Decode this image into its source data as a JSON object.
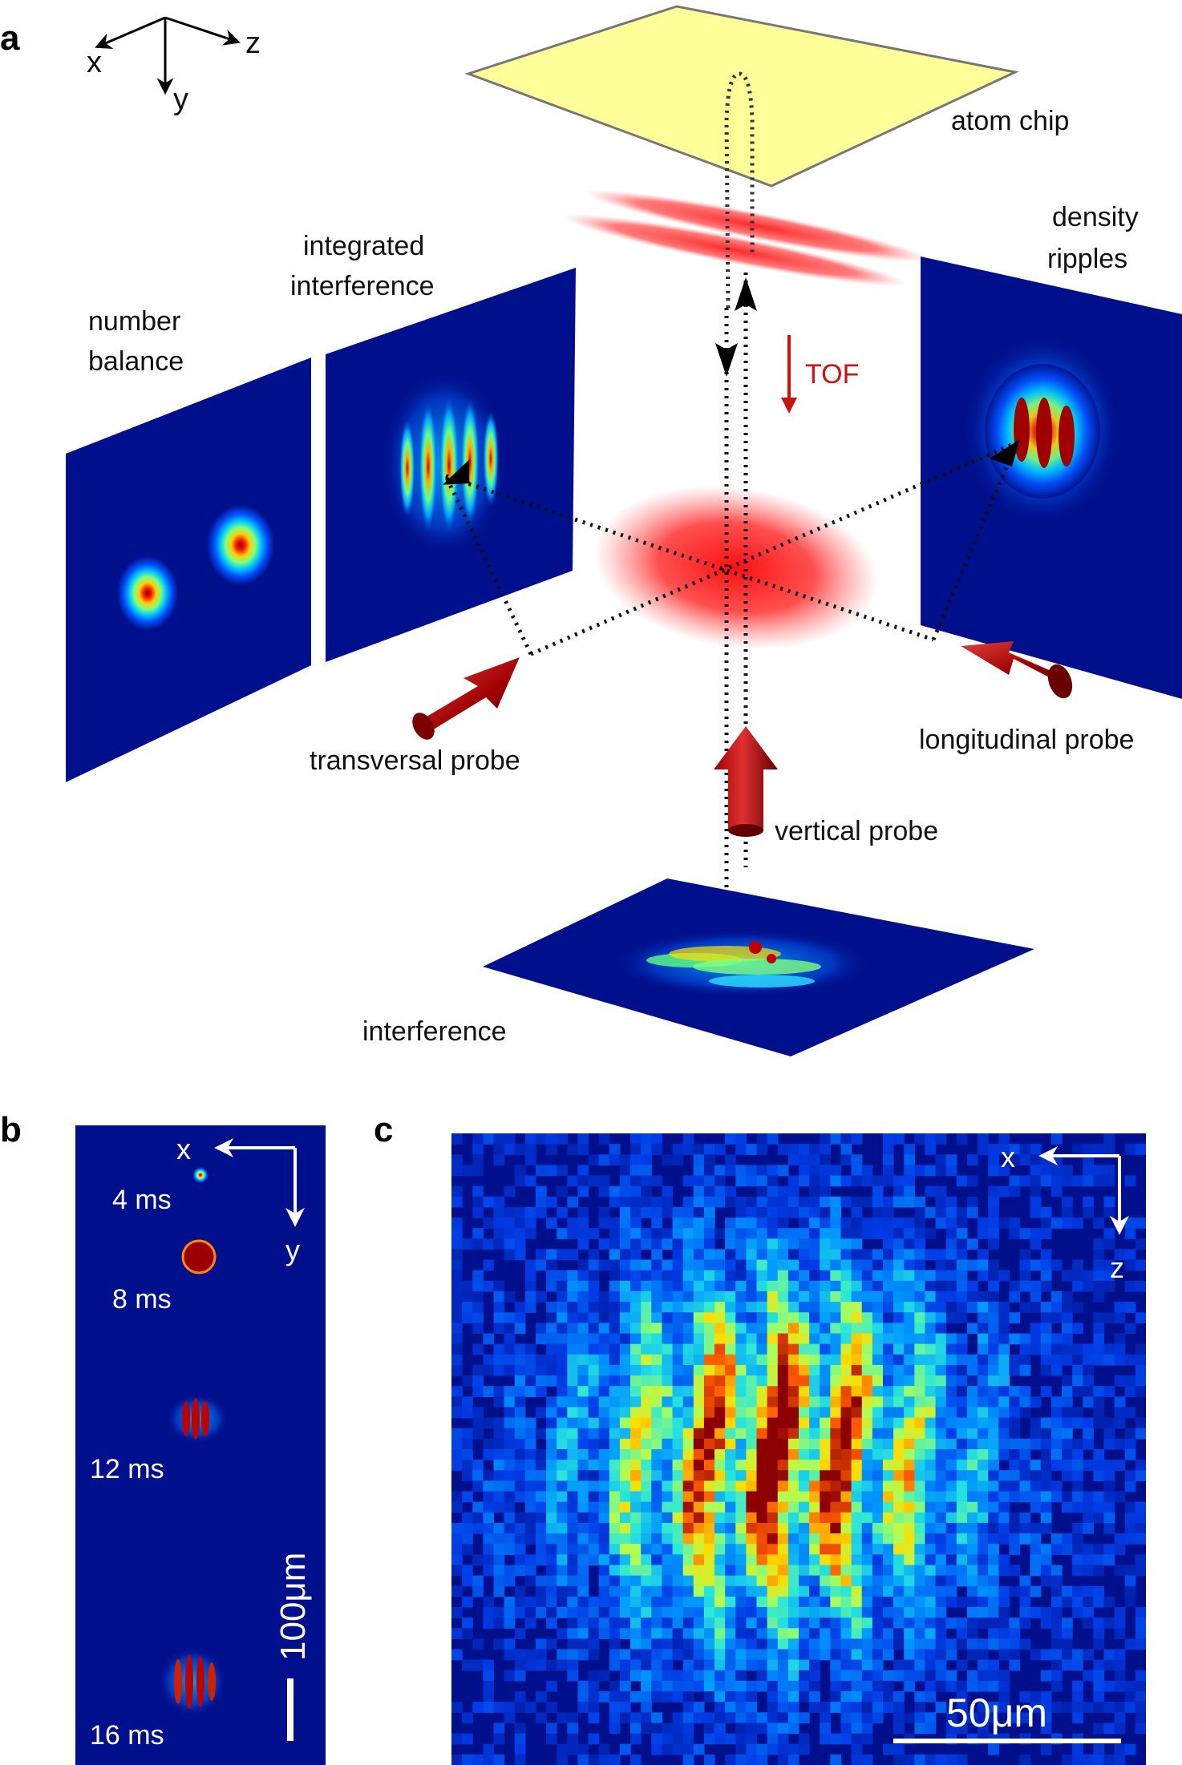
{
  "panels": {
    "a": "a",
    "b": "b",
    "c": "c"
  },
  "axes_a": {
    "x": "x",
    "y": "y",
    "z": "z"
  },
  "labels_a": {
    "atom_chip": "atom chip",
    "density_line1": "density",
    "density_line2": "ripples",
    "integrated_line1": "integrated",
    "integrated_line2": "interference",
    "number_line1": "number",
    "number_line2": "balance",
    "tof": "TOF",
    "transversal_probe": "transversal probe",
    "longitudinal_probe": "longitudinal probe",
    "vertical_probe": "vertical probe",
    "interference": "interference"
  },
  "panel_b": {
    "axis_x": "x",
    "axis_y": "y",
    "times": [
      "4 ms",
      "8 ms",
      "12 ms",
      "16 ms"
    ],
    "scale": "100μm"
  },
  "panel_c": {
    "axis_x": "x",
    "axis_z": "z",
    "scale": "50μm"
  },
  "colors": {
    "deep_blue": "#00108c",
    "chip_yellow": "#ffff99",
    "probe_red": "#b01010",
    "tof_red": "#cc1111"
  }
}
